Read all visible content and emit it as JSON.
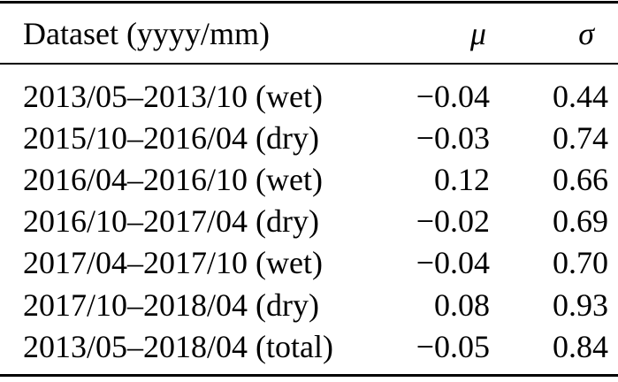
{
  "page": {
    "background_color": "#ffffff",
    "text_color": "#000000",
    "rule_color": "#000000"
  },
  "table": {
    "header": {
      "dataset": "Dataset (yyyy/mm)",
      "mu": "μ",
      "sigma": "σ"
    },
    "rows": [
      {
        "dataset": "2013/05–2013/10 (wet)",
        "mu": "−0.04",
        "sigma": "0.44"
      },
      {
        "dataset": "2015/10–2016/04 (dry)",
        "mu": "−0.03",
        "sigma": "0.74"
      },
      {
        "dataset": "2016/04–2016/10 (wet)",
        "mu": "0.12",
        "sigma": "0.66"
      },
      {
        "dataset": "2016/10–2017/04 (dry)",
        "mu": "−0.02",
        "sigma": "0.69"
      },
      {
        "dataset": "2017/04–2017/10 (wet)",
        "mu": "−0.04",
        "sigma": "0.70"
      },
      {
        "dataset": "2017/10–2018/04 (dry)",
        "mu": "0.08",
        "sigma": "0.93"
      },
      {
        "dataset": "2013/05–2018/04 (total)",
        "mu": "−0.05",
        "sigma": "0.84"
      }
    ]
  }
}
